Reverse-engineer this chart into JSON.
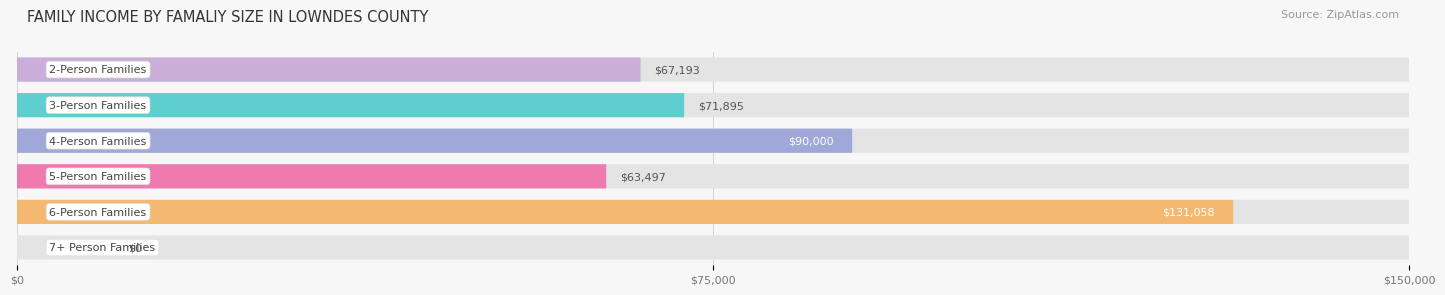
{
  "title": "FAMILY INCOME BY FAMALIY SIZE IN LOWNDES COUNTY",
  "source": "Source: ZipAtlas.com",
  "categories": [
    "2-Person Families",
    "3-Person Families",
    "4-Person Families",
    "5-Person Families",
    "6-Person Families",
    "7+ Person Families"
  ],
  "values": [
    67193,
    71895,
    90000,
    63497,
    131058,
    0
  ],
  "bar_colors": [
    "#caadd8",
    "#5ecece",
    "#9fa8d8",
    "#f07ab0",
    "#f5b870",
    "#f5c0c0"
  ],
  "value_labels": [
    "$67,193",
    "$71,895",
    "$90,000",
    "$63,497",
    "$131,058",
    "$0"
  ],
  "value_inside": [
    false,
    false,
    true,
    false,
    true,
    false
  ],
  "xlim": [
    0,
    150000
  ],
  "xticks": [
    0,
    75000,
    150000
  ],
  "xtick_labels": [
    "$0",
    "$75,000",
    "$150,000"
  ],
  "bar_height": 0.68,
  "background_color": "#f7f7f7",
  "bar_bg_color": "#e4e4e4",
  "title_fontsize": 10.5,
  "source_fontsize": 8,
  "label_fontsize": 8,
  "value_fontsize": 8,
  "tick_fontsize": 8,
  "label_box_color": "#ffffff",
  "label_text_color": "#444444",
  "value_inside_color": "#ffffff",
  "value_outside_color": "#555555"
}
